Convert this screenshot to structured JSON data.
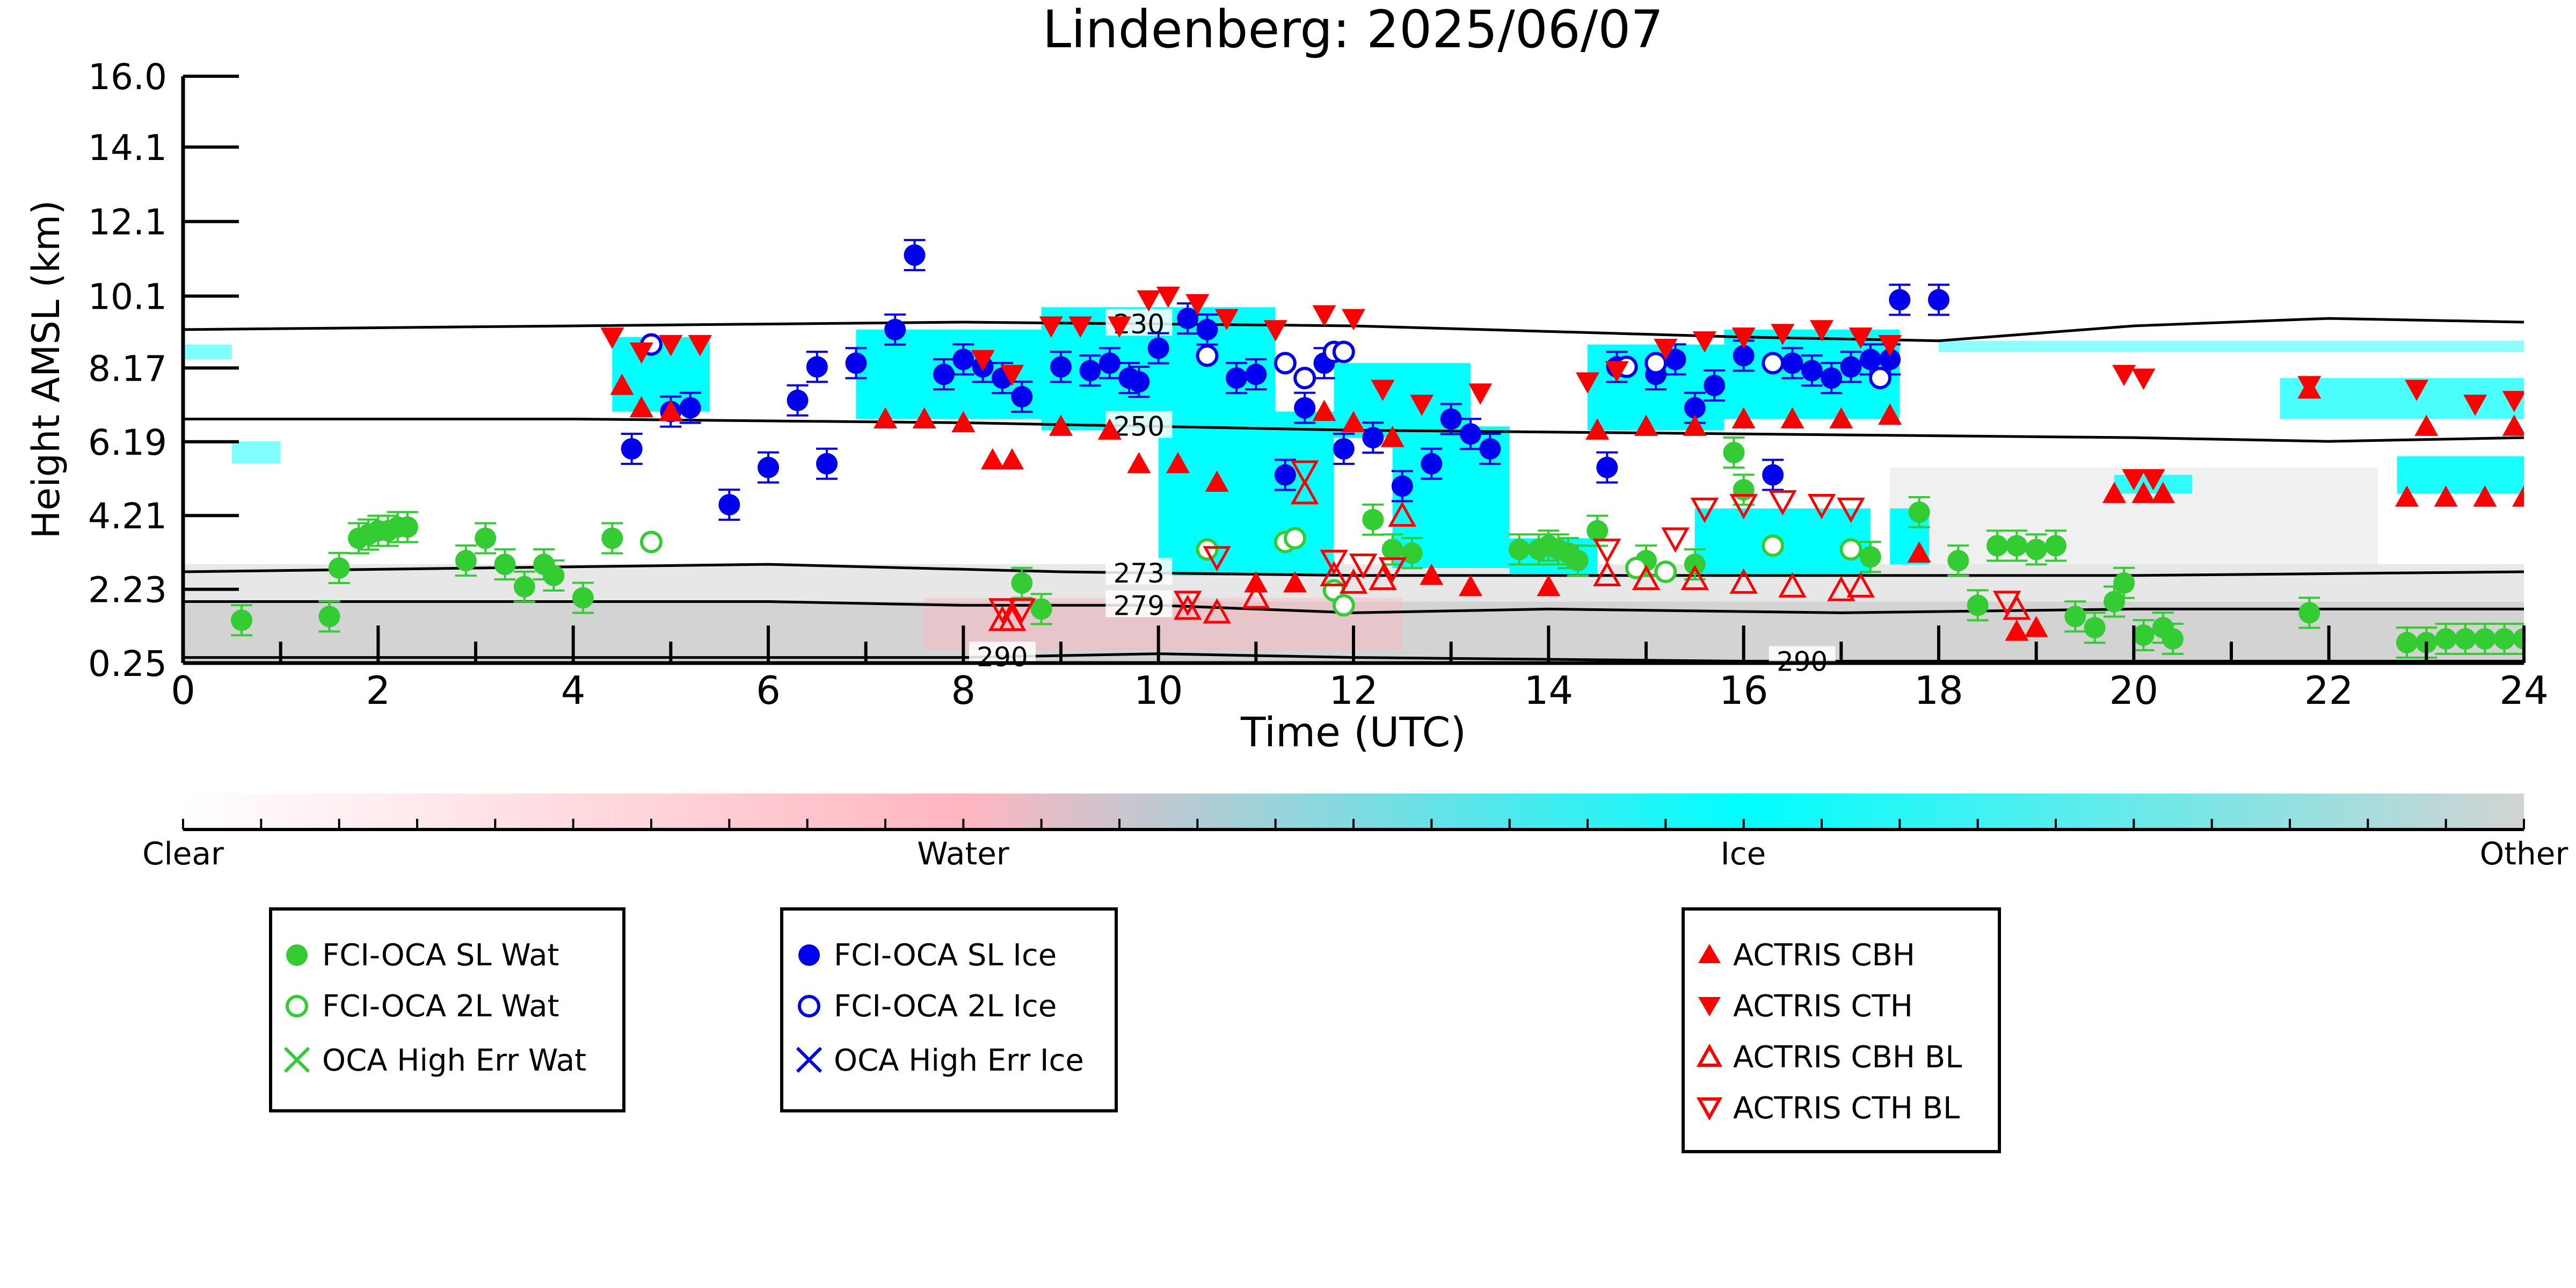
{
  "chart_data": {
    "type": "scatter",
    "title": "Lindenberg: 2025/06/07",
    "xlabel": "Time (UTC)",
    "ylabel": "Height AMSL (km)",
    "xlim": [
      0,
      24
    ],
    "ylim": [
      0.25,
      16.0
    ],
    "x_ticks": [
      0,
      2,
      4,
      6,
      8,
      10,
      12,
      14,
      16,
      18,
      20,
      22,
      24
    ],
    "y_ticks": [
      "0.25",
      "2.23",
      "4.21",
      "6.19",
      "8.17",
      "10.1",
      "12.1",
      "14.1",
      "16.0"
    ],
    "grid": false,
    "colorbar": {
      "labels": [
        "Clear",
        "Water",
        "Ice",
        "Other"
      ],
      "colors": [
        "#ffffff",
        "#ffb6c1",
        "#00ffff",
        "#d3d3d3"
      ]
    },
    "isotherms": [
      {
        "label": "230",
        "label_x": 9.8,
        "points": [
          [
            0,
            9.2
          ],
          [
            4,
            9.3
          ],
          [
            8,
            9.4
          ],
          [
            12,
            9.3
          ],
          [
            16,
            9.0
          ],
          [
            18,
            8.9
          ],
          [
            20,
            9.3
          ],
          [
            22,
            9.5
          ],
          [
            24,
            9.4
          ]
        ]
      },
      {
        "label": "250",
        "label_x": 9.8,
        "points": [
          [
            0,
            6.8
          ],
          [
            4,
            6.8
          ],
          [
            8,
            6.7
          ],
          [
            12,
            6.5
          ],
          [
            16,
            6.4
          ],
          [
            20,
            6.3
          ],
          [
            22,
            6.2
          ],
          [
            24,
            6.3
          ]
        ]
      },
      {
        "label": "273",
        "label_x": 9.8,
        "points": [
          [
            0,
            2.7
          ],
          [
            3,
            2.8
          ],
          [
            6,
            2.9
          ],
          [
            9,
            2.7
          ],
          [
            12,
            2.6
          ],
          [
            16,
            2.6
          ],
          [
            20,
            2.6
          ],
          [
            24,
            2.7
          ]
        ]
      },
      {
        "label": "279",
        "label_x": 9.8,
        "points": [
          [
            0,
            1.9
          ],
          [
            3,
            1.9
          ],
          [
            6,
            1.9
          ],
          [
            8,
            1.8
          ],
          [
            10,
            1.8
          ],
          [
            12,
            1.6
          ],
          [
            14,
            1.7
          ],
          [
            17,
            1.6
          ],
          [
            20,
            1.7
          ],
          [
            24,
            1.7
          ]
        ]
      },
      {
        "label": "290",
        "label_x": 8.4,
        "points": [
          [
            0,
            0.4
          ],
          [
            6,
            0.4
          ],
          [
            8,
            0.4
          ],
          [
            10,
            0.5
          ],
          [
            12,
            0.4
          ],
          [
            16,
            0.3
          ],
          [
            20,
            0.3
          ],
          [
            24,
            0.3
          ]
        ]
      },
      {
        "label": "290",
        "label_x": 16.6,
        "points": []
      }
    ],
    "legend_groups": [
      {
        "entries": [
          "FCI-OCA SL Wat",
          "FCI-OCA 2L Wat",
          "OCA High Err Wat"
        ]
      },
      {
        "entries": [
          "FCI-OCA SL Ice",
          "FCI-OCA 2L Ice",
          "OCA High Err Ice"
        ]
      },
      {
        "entries": [
          "ACTRIS CBH",
          "ACTRIS CTH",
          "ACTRIS CBH BL",
          "ACTRIS CTH BL"
        ]
      }
    ],
    "series": [
      {
        "name": "FCI-OCA SL Wat",
        "marker": "filled-circle",
        "color": "#33cc33",
        "points": [
          [
            0.6,
            1.4
          ],
          [
            1.5,
            1.5
          ],
          [
            1.6,
            2.8
          ],
          [
            1.8,
            3.6
          ],
          [
            1.9,
            3.7
          ],
          [
            2.0,
            3.8
          ],
          [
            2.1,
            3.8
          ],
          [
            2.2,
            3.9
          ],
          [
            2.3,
            3.9
          ],
          [
            2.9,
            3.0
          ],
          [
            3.1,
            3.6
          ],
          [
            3.3,
            2.9
          ],
          [
            3.5,
            2.3
          ],
          [
            3.7,
            2.9
          ],
          [
            3.8,
            2.6
          ],
          [
            4.1,
            2.0
          ],
          [
            4.4,
            3.6
          ],
          [
            8.6,
            2.4
          ],
          [
            8.8,
            1.7
          ],
          [
            12.2,
            4.1
          ],
          [
            12.4,
            3.3
          ],
          [
            12.6,
            3.2
          ],
          [
            13.7,
            3.3
          ],
          [
            13.9,
            3.3
          ],
          [
            14.0,
            3.4
          ],
          [
            14.1,
            3.3
          ],
          [
            14.2,
            3.2
          ],
          [
            14.3,
            3.0
          ],
          [
            14.5,
            3.8
          ],
          [
            15.0,
            3.0
          ],
          [
            15.5,
            2.9
          ],
          [
            15.9,
            5.9
          ],
          [
            16.0,
            4.9
          ],
          [
            17.3,
            3.1
          ],
          [
            17.8,
            4.3
          ],
          [
            18.2,
            3.0
          ],
          [
            18.4,
            1.8
          ],
          [
            18.6,
            3.4
          ],
          [
            18.8,
            3.4
          ],
          [
            19.0,
            3.3
          ],
          [
            19.2,
            3.4
          ],
          [
            19.4,
            1.5
          ],
          [
            19.6,
            1.2
          ],
          [
            19.8,
            1.9
          ],
          [
            19.9,
            2.4
          ],
          [
            20.1,
            1.0
          ],
          [
            20.3,
            1.2
          ],
          [
            20.4,
            0.9
          ],
          [
            21.8,
            1.6
          ],
          [
            22.8,
            0.8
          ],
          [
            23.0,
            0.8
          ],
          [
            23.2,
            0.9
          ],
          [
            23.4,
            0.9
          ],
          [
            23.6,
            0.9
          ],
          [
            23.8,
            0.9
          ],
          [
            24.0,
            0.9
          ]
        ]
      },
      {
        "name": "FCI-OCA 2L Wat",
        "marker": "open-circle",
        "color": "#33cc33",
        "points": [
          [
            4.8,
            3.5
          ],
          [
            10.5,
            3.3
          ],
          [
            11.3,
            3.5
          ],
          [
            11.4,
            3.6
          ],
          [
            11.8,
            2.2
          ],
          [
            11.9,
            1.8
          ],
          [
            14.9,
            2.8
          ],
          [
            15.2,
            2.7
          ],
          [
            16.3,
            3.4
          ],
          [
            17.1,
            3.3
          ]
        ]
      },
      {
        "name": "FCI-OCA SL Ice",
        "marker": "filled-circle",
        "color": "#0000ee",
        "points": [
          [
            4.6,
            6.0
          ],
          [
            5.0,
            7.0
          ],
          [
            5.2,
            7.1
          ],
          [
            5.6,
            4.5
          ],
          [
            6.0,
            5.5
          ],
          [
            6.3,
            7.3
          ],
          [
            6.5,
            8.2
          ],
          [
            6.6,
            5.6
          ],
          [
            6.9,
            8.3
          ],
          [
            7.3,
            9.2
          ],
          [
            7.5,
            11.2
          ],
          [
            7.8,
            8.0
          ],
          [
            8.0,
            8.4
          ],
          [
            8.2,
            8.2
          ],
          [
            8.4,
            7.9
          ],
          [
            8.6,
            7.4
          ],
          [
            9.0,
            8.2
          ],
          [
            9.3,
            8.1
          ],
          [
            9.5,
            8.3
          ],
          [
            9.7,
            7.9
          ],
          [
            9.8,
            7.8
          ],
          [
            10.0,
            8.7
          ],
          [
            10.3,
            9.5
          ],
          [
            10.5,
            9.2
          ],
          [
            10.8,
            7.9
          ],
          [
            11.0,
            8.0
          ],
          [
            11.3,
            5.3
          ],
          [
            11.5,
            7.1
          ],
          [
            11.7,
            8.3
          ],
          [
            11.9,
            6.0
          ],
          [
            12.2,
            6.3
          ],
          [
            12.5,
            5.0
          ],
          [
            12.8,
            5.6
          ],
          [
            13.0,
            6.8
          ],
          [
            13.2,
            6.4
          ],
          [
            13.4,
            6.0
          ],
          [
            14.6,
            5.5
          ],
          [
            14.7,
            8.2
          ],
          [
            15.1,
            8.0
          ],
          [
            15.3,
            8.4
          ],
          [
            15.5,
            7.1
          ],
          [
            15.7,
            7.7
          ],
          [
            16.0,
            8.5
          ],
          [
            16.3,
            5.3
          ],
          [
            16.5,
            8.3
          ],
          [
            16.7,
            8.1
          ],
          [
            16.9,
            7.9
          ],
          [
            17.1,
            8.2
          ],
          [
            17.3,
            8.4
          ],
          [
            17.5,
            8.4
          ],
          [
            17.6,
            10.0
          ],
          [
            18.0,
            10.0
          ]
        ]
      },
      {
        "name": "FCI-OCA 2L Ice",
        "marker": "open-circle",
        "color": "#0000ee",
        "points": [
          [
            4.8,
            8.8
          ],
          [
            10.5,
            8.5
          ],
          [
            11.3,
            8.3
          ],
          [
            11.5,
            7.9
          ],
          [
            11.8,
            8.6
          ],
          [
            11.9,
            8.6
          ],
          [
            14.8,
            8.2
          ],
          [
            15.1,
            8.3
          ],
          [
            16.3,
            8.3
          ],
          [
            17.4,
            7.9
          ]
        ]
      },
      {
        "name": "ACTRIS CBH",
        "marker": "filled-triangle-up",
        "color": "#ff0000",
        "points": [
          [
            4.5,
            7.7
          ],
          [
            4.7,
            7.1
          ],
          [
            5.0,
            7.0
          ],
          [
            7.2,
            6.8
          ],
          [
            7.6,
            6.8
          ],
          [
            8.0,
            6.7
          ],
          [
            8.3,
            5.7
          ],
          [
            8.5,
            5.7
          ],
          [
            9.0,
            6.6
          ],
          [
            9.5,
            6.5
          ],
          [
            9.8,
            5.6
          ],
          [
            10.2,
            5.6
          ],
          [
            10.6,
            5.1
          ],
          [
            11.0,
            2.4
          ],
          [
            11.4,
            2.4
          ],
          [
            11.7,
            7.0
          ],
          [
            12.0,
            6.7
          ],
          [
            12.4,
            6.3
          ],
          [
            12.8,
            2.6
          ],
          [
            13.2,
            2.3
          ],
          [
            14.0,
            2.3
          ],
          [
            14.5,
            6.5
          ],
          [
            15.0,
            6.6
          ],
          [
            15.5,
            6.6
          ],
          [
            16.0,
            6.8
          ],
          [
            16.5,
            6.8
          ],
          [
            17.0,
            6.8
          ],
          [
            17.5,
            6.9
          ],
          [
            17.8,
            3.2
          ],
          [
            18.8,
            1.1
          ],
          [
            19.0,
            1.2
          ],
          [
            19.8,
            4.8
          ],
          [
            20.1,
            4.8
          ],
          [
            20.3,
            4.8
          ],
          [
            21.8,
            7.6
          ],
          [
            23.0,
            6.6
          ],
          [
            23.9,
            6.6
          ],
          [
            22.8,
            4.7
          ],
          [
            23.2,
            4.7
          ],
          [
            23.6,
            4.7
          ],
          [
            24.0,
            4.7
          ]
        ]
      },
      {
        "name": "ACTRIS CTH",
        "marker": "filled-triangle-down",
        "color": "#ff0000",
        "points": [
          [
            4.4,
            9.0
          ],
          [
            4.7,
            8.6
          ],
          [
            5.0,
            8.8
          ],
          [
            5.3,
            8.8
          ],
          [
            8.2,
            8.4
          ],
          [
            8.5,
            8.0
          ],
          [
            8.9,
            9.3
          ],
          [
            9.2,
            9.3
          ],
          [
            9.6,
            9.3
          ],
          [
            9.9,
            10.0
          ],
          [
            10.1,
            10.1
          ],
          [
            10.4,
            9.9
          ],
          [
            10.7,
            9.5
          ],
          [
            11.2,
            9.2
          ],
          [
            11.7,
            9.6
          ],
          [
            12.0,
            9.5
          ],
          [
            12.3,
            7.6
          ],
          [
            12.7,
            7.2
          ],
          [
            13.3,
            7.5
          ],
          [
            14.4,
            7.8
          ],
          [
            14.7,
            8.1
          ],
          [
            15.2,
            8.7
          ],
          [
            15.6,
            8.9
          ],
          [
            16.0,
            9.0
          ],
          [
            16.4,
            9.1
          ],
          [
            16.8,
            9.2
          ],
          [
            17.2,
            9.0
          ],
          [
            17.5,
            8.8
          ],
          [
            19.9,
            8.0
          ],
          [
            20.1,
            7.9
          ],
          [
            21.8,
            7.7
          ],
          [
            22.9,
            7.6
          ],
          [
            23.5,
            7.2
          ],
          [
            23.9,
            7.3
          ],
          [
            20.0,
            5.2
          ],
          [
            20.2,
            5.2
          ]
        ]
      },
      {
        "name": "ACTRIS CBH BL",
        "marker": "open-triangle-up",
        "color": "#ff0000",
        "points": [
          [
            8.4,
            1.4
          ],
          [
            8.5,
            1.4
          ],
          [
            10.3,
            1.7
          ],
          [
            10.6,
            1.6
          ],
          [
            11.0,
            2.0
          ],
          [
            11.5,
            4.8
          ],
          [
            11.8,
            2.6
          ],
          [
            12.0,
            2.4
          ],
          [
            12.3,
            2.5
          ],
          [
            12.5,
            4.2
          ],
          [
            14.6,
            2.6
          ],
          [
            15.0,
            2.5
          ],
          [
            15.5,
            2.5
          ],
          [
            16.0,
            2.4
          ],
          [
            16.5,
            2.3
          ],
          [
            17.0,
            2.2
          ],
          [
            17.2,
            2.3
          ],
          [
            18.8,
            1.7
          ]
        ]
      },
      {
        "name": "ACTRIS CTH BL",
        "marker": "open-triangle-down",
        "color": "#ff0000",
        "points": [
          [
            8.4,
            1.7
          ],
          [
            8.6,
            1.7
          ],
          [
            10.3,
            1.9
          ],
          [
            10.6,
            3.1
          ],
          [
            11.5,
            5.4
          ],
          [
            11.8,
            3.0
          ],
          [
            12.1,
            2.9
          ],
          [
            12.4,
            2.8
          ],
          [
            14.6,
            3.3
          ],
          [
            15.3,
            3.6
          ],
          [
            15.6,
            4.4
          ],
          [
            16.0,
            4.5
          ],
          [
            16.4,
            4.6
          ],
          [
            16.8,
            4.5
          ],
          [
            17.1,
            4.4
          ],
          [
            18.7,
            1.9
          ]
        ]
      }
    ]
  }
}
